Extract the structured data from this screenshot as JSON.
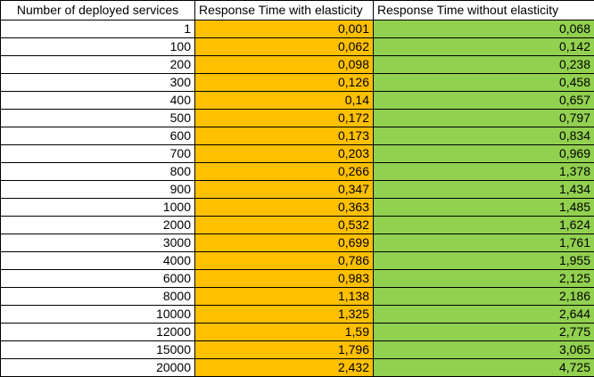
{
  "table": {
    "columns": [
      {
        "key": "services",
        "label": "Number of deployed services",
        "color": "#FFFFFF"
      },
      {
        "key": "with_elasticity",
        "label": "Response Time with elasticity",
        "color": "#FFC000"
      },
      {
        "key": "without_elasticity",
        "label": "Response Time without elasticity",
        "color": "#92D050"
      }
    ],
    "rows": [
      {
        "services": "1",
        "with_elasticity": "0,001",
        "without_elasticity": "0,068"
      },
      {
        "services": "100",
        "with_elasticity": "0,062",
        "without_elasticity": "0,142"
      },
      {
        "services": "200",
        "with_elasticity": "0,098",
        "without_elasticity": "0,238"
      },
      {
        "services": "300",
        "with_elasticity": "0,126",
        "without_elasticity": "0,458"
      },
      {
        "services": "400",
        "with_elasticity": "0,14",
        "without_elasticity": "0,657"
      },
      {
        "services": "500",
        "with_elasticity": "0,172",
        "without_elasticity": "0,797"
      },
      {
        "services": "600",
        "with_elasticity": "0,173",
        "without_elasticity": "0,834"
      },
      {
        "services": "700",
        "with_elasticity": "0,203",
        "without_elasticity": "0,969"
      },
      {
        "services": "800",
        "with_elasticity": "0,266",
        "without_elasticity": "1,378"
      },
      {
        "services": "900",
        "with_elasticity": "0,347",
        "without_elasticity": "1,434"
      },
      {
        "services": "1000",
        "with_elasticity": "0,363",
        "without_elasticity": "1,485"
      },
      {
        "services": "2000",
        "with_elasticity": "0,532",
        "without_elasticity": "1,624"
      },
      {
        "services": "3000",
        "with_elasticity": "0,699",
        "without_elasticity": "1,761"
      },
      {
        "services": "4000",
        "with_elasticity": "0,786",
        "without_elasticity": "1,955"
      },
      {
        "services": "6000",
        "with_elasticity": "0,983",
        "without_elasticity": "2,125"
      },
      {
        "services": "8000",
        "with_elasticity": "1,138",
        "without_elasticity": "2,186"
      },
      {
        "services": "10000",
        "with_elasticity": "1,325",
        "without_elasticity": "2,644"
      },
      {
        "services": "12000",
        "with_elasticity": "1,59",
        "without_elasticity": "2,775"
      },
      {
        "services": "15000",
        "with_elasticity": "1,796",
        "without_elasticity": "3,065"
      },
      {
        "services": "20000",
        "with_elasticity": "2,432",
        "without_elasticity": "4,725"
      }
    ]
  },
  "chart_data": {
    "type": "table",
    "title": "",
    "columns": [
      "Number of deployed services",
      "Response Time with elasticity",
      "Response Time without elasticity"
    ],
    "x": [
      1,
      100,
      200,
      300,
      400,
      500,
      600,
      700,
      800,
      900,
      1000,
      2000,
      3000,
      4000,
      6000,
      8000,
      10000,
      12000,
      15000,
      20000
    ],
    "series": [
      {
        "name": "Response Time with elasticity",
        "color": "#FFC000",
        "values": [
          0.001,
          0.062,
          0.098,
          0.126,
          0.14,
          0.172,
          0.173,
          0.203,
          0.266,
          0.347,
          0.363,
          0.532,
          0.699,
          0.786,
          0.983,
          1.138,
          1.325,
          1.59,
          1.796,
          2.432
        ]
      },
      {
        "name": "Response Time without elasticity",
        "color": "#92D050",
        "values": [
          0.068,
          0.142,
          0.238,
          0.458,
          0.657,
          0.797,
          0.834,
          0.969,
          1.378,
          1.434,
          1.485,
          1.624,
          1.761,
          1.955,
          2.125,
          2.186,
          2.644,
          2.775,
          3.065,
          4.725
        ]
      }
    ],
    "decimal_separator": ","
  }
}
